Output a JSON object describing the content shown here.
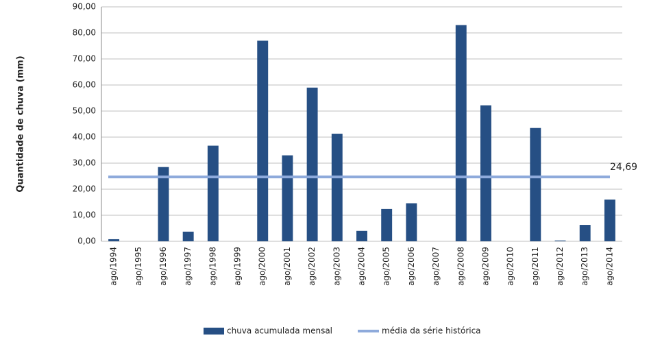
{
  "chart_data": {
    "type": "bar",
    "y_label": "Quantidade de chuva (mm)",
    "categories": [
      "ago/1994",
      "ago/1995",
      "ago/1996",
      "ago/1997",
      "ago/1998",
      "ago/1999",
      "ago/2000",
      "ago/2001",
      "ago/2002",
      "ago/2003",
      "ago/2004",
      "ago/2005",
      "ago/2006",
      "ago/2007",
      "ago/2008",
      "ago/2009",
      "ago/2010",
      "ago/2011",
      "ago/2012",
      "ago/2013",
      "ago/2014"
    ],
    "series": [
      {
        "name": "chuva acumulada mensal",
        "color": "#264f84",
        "values": [
          0.8,
          0,
          28.5,
          3.7,
          36.7,
          0,
          77,
          33,
          59,
          41.3,
          4,
          12.4,
          14.6,
          0,
          83,
          52.2,
          0,
          43.5,
          0.3,
          6.3,
          16
        ]
      }
    ],
    "mean": {
      "name": "média da série histórica",
      "color": "#8eaadb",
      "value": 24.69,
      "value_label": "24,69"
    },
    "ylim": [
      0,
      90
    ],
    "yticks": [
      {
        "value": 0,
        "label": "0,00"
      },
      {
        "value": 10,
        "label": "10,00"
      },
      {
        "value": 20,
        "label": "20,00"
      },
      {
        "value": 30,
        "label": "30,00"
      },
      {
        "value": 40,
        "label": "40,00"
      },
      {
        "value": 50,
        "label": "50,00"
      },
      {
        "value": 60,
        "label": "60,00"
      },
      {
        "value": 70,
        "label": "70,00"
      },
      {
        "value": 80,
        "label": "80,00"
      },
      {
        "value": 90,
        "label": "90,00"
      }
    ],
    "grid": true,
    "legend": "bottom"
  }
}
